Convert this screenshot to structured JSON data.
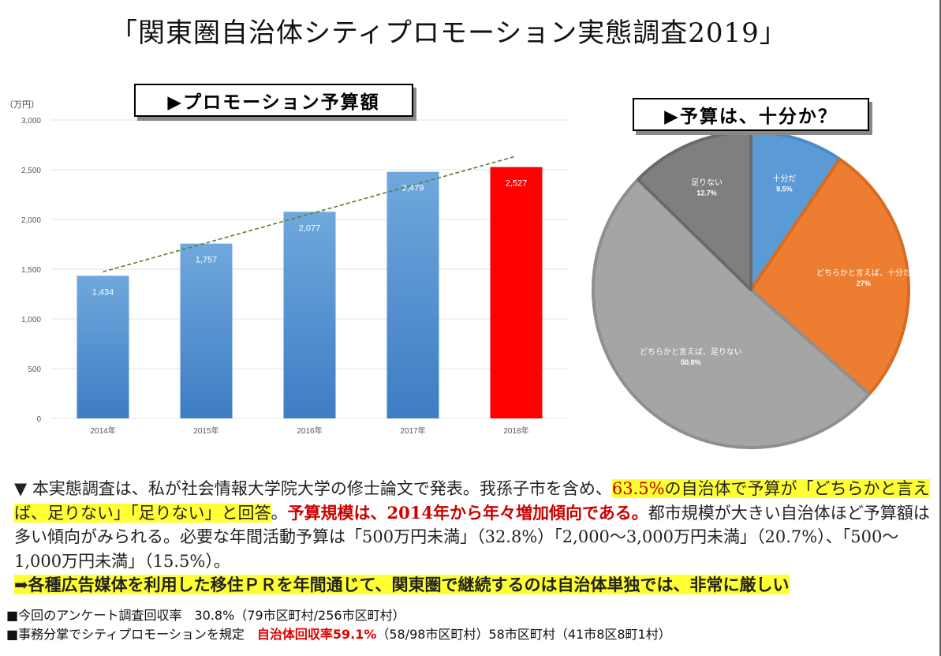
{
  "title": "「関東圏自治体シティプロモーション実態調査2019」",
  "colors": {
    "bar": "#5b9bd5",
    "bar_highlight": "#ff0000",
    "trend": "#548235",
    "pie": [
      "#5b9bd5",
      "#ed7d31",
      "#a5a5a5",
      "#7f7f7f"
    ]
  },
  "chart_data": [
    {
      "type": "bar",
      "title": "▶プロモーション予算額",
      "ylabel": "（万円）",
      "categories": [
        "2014年",
        "2015年",
        "2016年",
        "2017年",
        "2018年"
      ],
      "values": [
        1434,
        1757,
        2077,
        2479,
        2527
      ],
      "value_labels": [
        "1,434",
        "1,757",
        "2,077",
        "2,479",
        "2,527"
      ],
      "ylim": [
        0,
        3000
      ],
      "yticks": [
        0,
        500,
        1000,
        1500,
        2000,
        2500,
        3000
      ],
      "ytick_labels": [
        "0",
        "500",
        "1,000",
        "1,500",
        "2,000",
        "2,500",
        "3,000"
      ],
      "highlight_index": 4,
      "trendline": "linear"
    },
    {
      "type": "pie",
      "title": "▶予算は、十分か？",
      "slices": [
        {
          "label": "十分だ",
          "value": 9.5,
          "value_label": "9.5%"
        },
        {
          "label": "どちらかと言えば、十分だ",
          "value": 27,
          "value_label": "27%"
        },
        {
          "label": "どちらかと言えば、足りない",
          "value": 50.8,
          "value_label": "50.8%"
        },
        {
          "label": "足りない",
          "value": 12.7,
          "value_label": "12.7%"
        }
      ]
    }
  ],
  "body": {
    "p1": "▼ 本実態調査は、私が社会情報大学院大学の修士論文で発表。我孫子市を含め、",
    "p2": "63.5%",
    "p3": "の自治体で予算が「どちらかと言えば、足りない」「足りない」と回答",
    "p4": "。",
    "p5": "予算規模は、2014年から年々増加傾向である。",
    "p6": "都市規模が大きい自治体ほど予算額は多い傾向がみられる。必要な年間活動予算は「500万円未満」（32.8%）「2,000～3,000万円未満」（20.7%）、「500～1,000万円未満」（15.5%）。",
    "p7": "➡各種広告媒体を利用した移住ＰＲを年間通じて、関東圏で継続するのは自治体単独では、非常に厳しい"
  },
  "notes": {
    "line1": "■今回のアンケート調査回収率　30.8%（79市区町村/256市区町村）",
    "line2a": "■事務分掌でシティプロモーションを規定　",
    "line2b": "自治体回収率59.1%",
    "line2c": "（58/98市区町村）58市区町村（41市8区8町1村）"
  }
}
